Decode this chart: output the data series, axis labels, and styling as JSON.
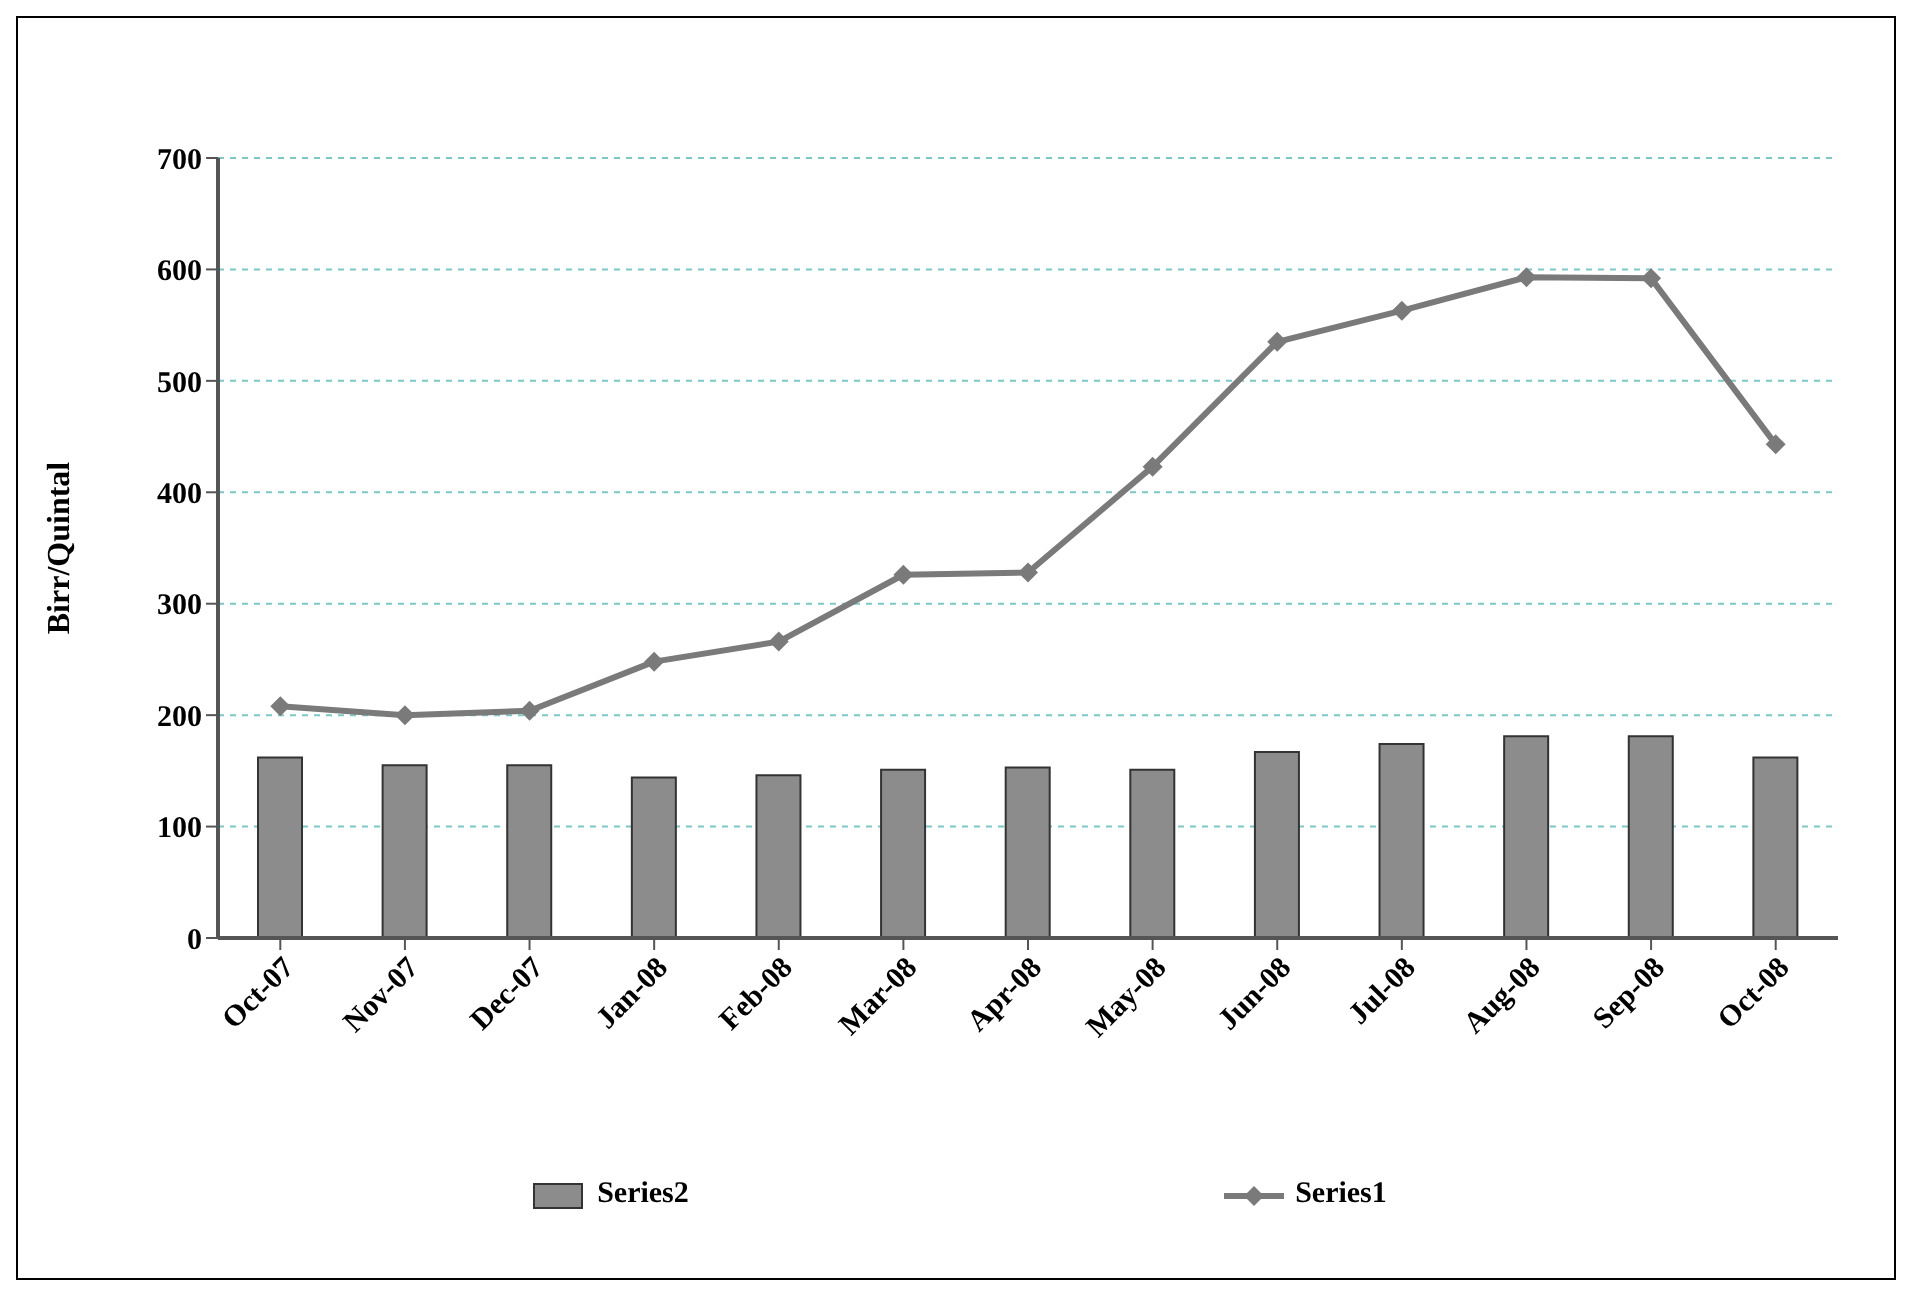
{
  "chart_data": {
    "type": "bar",
    "ylabel": "Birr/Quintal",
    "categories": [
      "Oct-07",
      "Nov-07",
      "Dec-07",
      "Jan-08",
      "Feb-08",
      "Mar-08",
      "Apr-08",
      "May-08",
      "Jun-08",
      "Jul-08",
      "Aug-08",
      "Sep-08",
      "Oct-08"
    ],
    "series": [
      {
        "name": "Series2",
        "color": "#8c8c8c",
        "values": [
          162,
          155,
          155,
          144,
          146,
          151,
          153,
          151,
          167,
          174,
          181,
          181,
          162
        ]
      },
      {
        "name": "Series1",
        "type": "line",
        "color": "#7a7a7a",
        "marker": "diamond",
        "values": [
          208,
          200,
          204,
          248,
          266,
          326,
          328,
          423,
          535,
          563,
          593,
          592,
          443
        ]
      }
    ],
    "ylim": [
      0,
      700
    ],
    "yticks": [
      0,
      100,
      200,
      300,
      400,
      500,
      600,
      700
    ],
    "grid": "y",
    "legend": "bottom"
  }
}
